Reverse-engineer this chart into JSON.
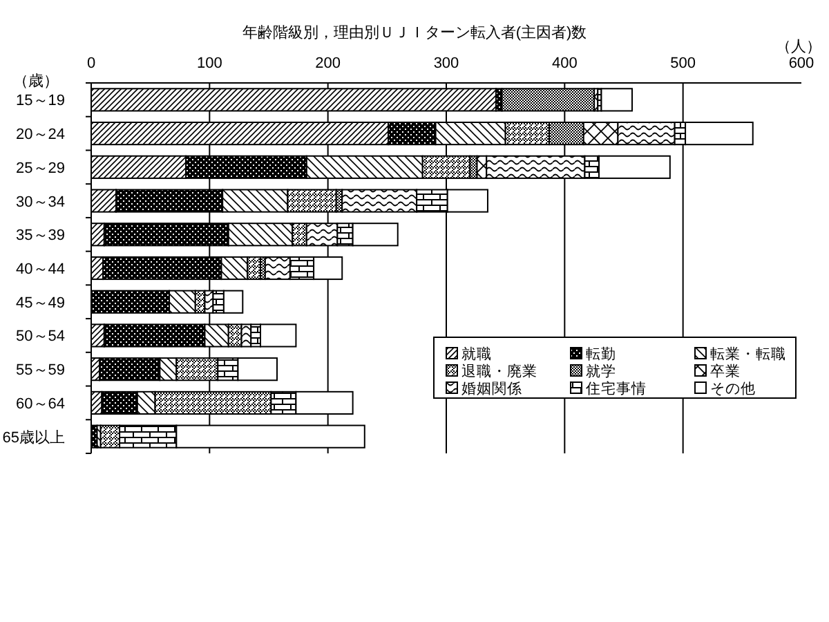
{
  "chart_data": {
    "type": "bar",
    "orientation": "horizontal",
    "stacked": true,
    "title": "年齢階級別，理由別ＵＪＩターン転入者(主因者)数",
    "xlabel": "（人）",
    "ylabel": "（歳）",
    "categories": [
      "15～19",
      "20～24",
      "25～29",
      "30～34",
      "35～39",
      "40～44",
      "45～49",
      "50～54",
      "55～59",
      "60～64",
      "65歳以上"
    ],
    "xlim": [
      0,
      600
    ],
    "xticks": [
      0,
      100,
      200,
      300,
      400,
      500,
      600
    ],
    "grid": "x",
    "legend": "bottom right",
    "series": [
      {
        "name": "就職",
        "color": "#000000",
        "values": [
          342,
          251,
          80,
          21,
          11,
          10,
          0,
          11,
          7,
          9,
          0
        ]
      },
      {
        "name": "転勤",
        "color": "#000000",
        "values": [
          5,
          40,
          102,
          90,
          105,
          100,
          66,
          85,
          51,
          30,
          5
        ]
      },
      {
        "name": "転業・転職",
        "color": "#000000",
        "values": [
          0,
          59,
          98,
          55,
          54,
          22,
          22,
          20,
          14,
          15,
          3
        ]
      },
      {
        "name": "退職・廃業",
        "color": "#000000",
        "values": [
          0,
          37,
          40,
          41,
          12,
          11,
          8,
          11,
          35,
          98,
          16
        ]
      },
      {
        "name": "就学",
        "color": "#000000",
        "values": [
          78,
          29,
          6,
          5,
          0,
          4,
          0,
          0,
          0,
          0,
          0
        ]
      },
      {
        "name": "卒業",
        "color": "#000000",
        "values": [
          3,
          29,
          8,
          0,
          0,
          0,
          0,
          0,
          0,
          0,
          0
        ]
      },
      {
        "name": "婚姻関係",
        "color": "#000000",
        "values": [
          0,
          48,
          83,
          63,
          26,
          21,
          7,
          8,
          0,
          0,
          0
        ]
      },
      {
        "name": "住宅事情",
        "color": "#000000",
        "values": [
          3,
          9,
          12,
          26,
          13,
          20,
          9,
          8,
          17,
          21,
          48
        ]
      },
      {
        "name": "その他",
        "color": "#ffffff",
        "values": [
          26,
          57,
          60,
          34,
          38,
          24,
          16,
          30,
          33,
          48,
          159
        ]
      }
    ]
  }
}
